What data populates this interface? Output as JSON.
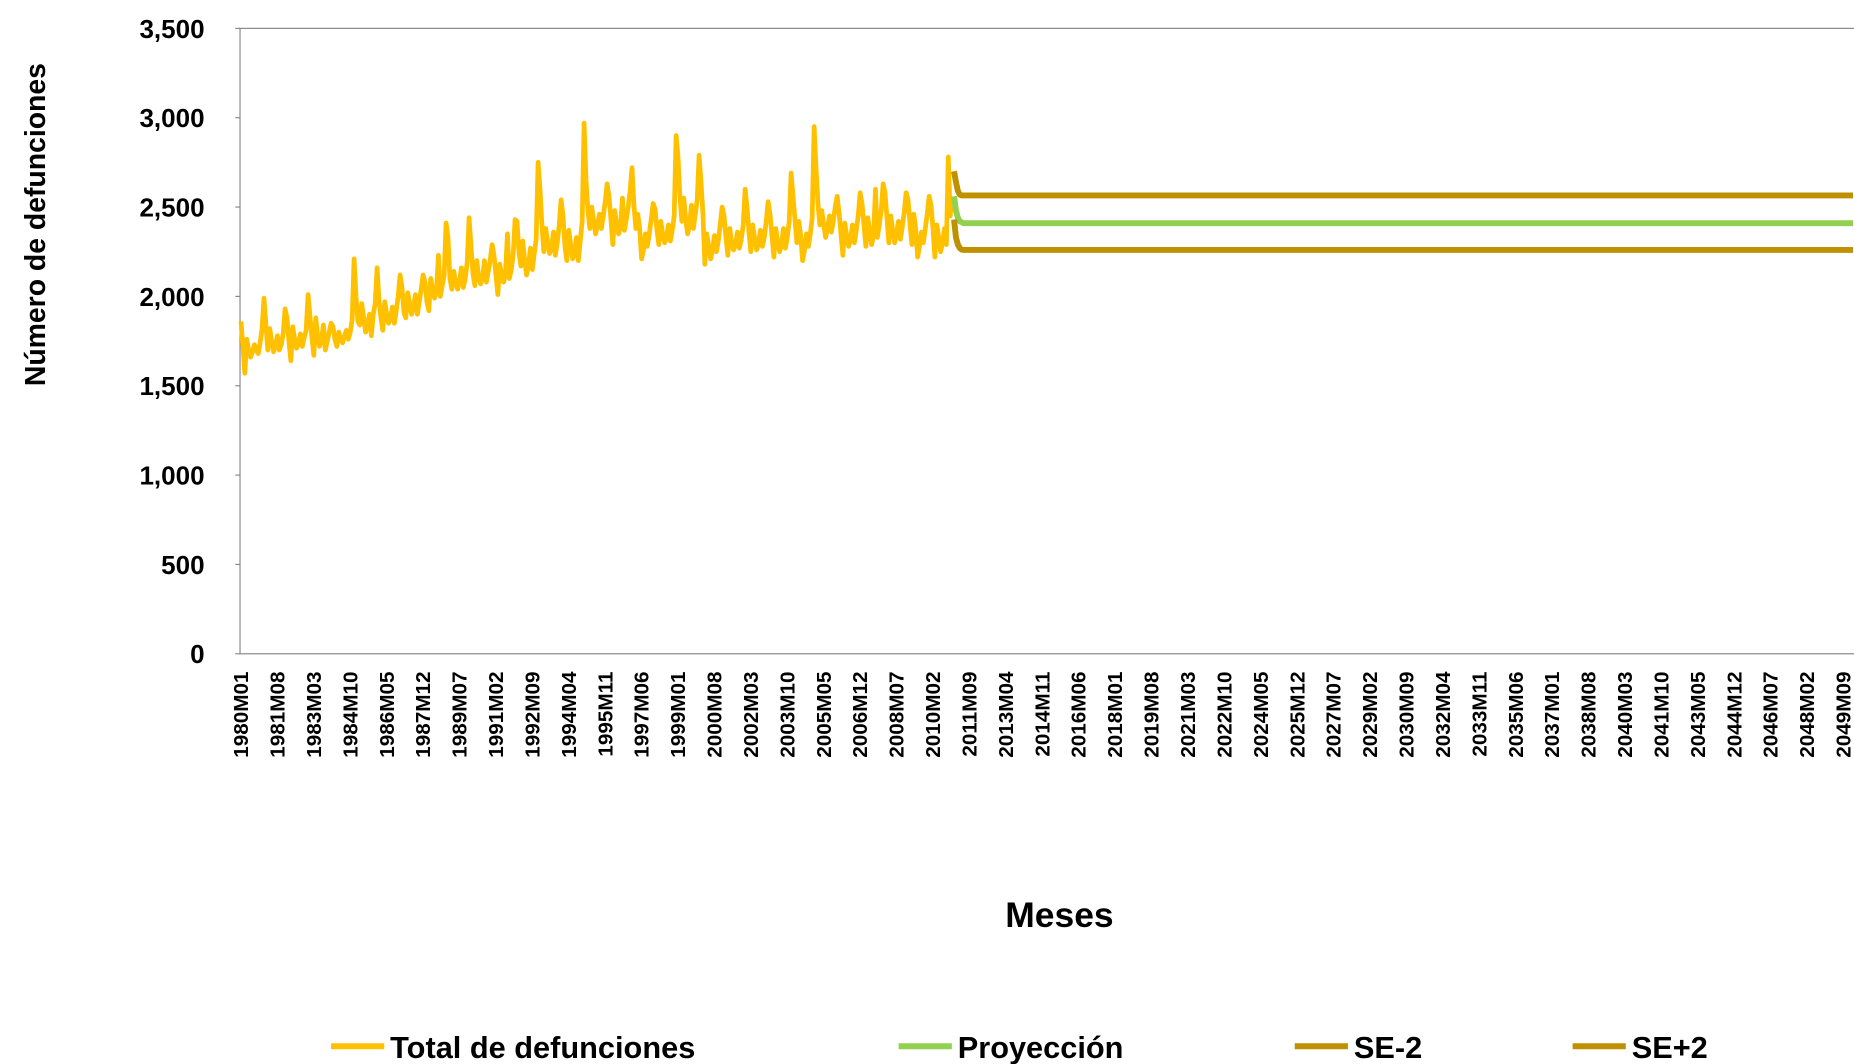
{
  "chart_data": {
    "type": "line",
    "y_label": "Número de defunciones",
    "x_label": "Meses",
    "xlim": [
      "1980M01",
      "2050M02"
    ],
    "xticks": [
      "1980M01",
      "1981M08",
      "1983M03",
      "1984M10",
      "1986M05",
      "1987M12",
      "1989M07",
      "1991M02",
      "1992M09",
      "1994M04",
      "1995M11",
      "1997M06",
      "1999M01",
      "2000M08",
      "2002M03",
      "2003M10",
      "2005M05",
      "2006M12",
      "2008M07",
      "2010M02",
      "2011M09",
      "2013M04",
      "2014M11",
      "2016M06",
      "2018M01",
      "2019M08",
      "2021M03",
      "2022M10",
      "2024M05",
      "2025M12",
      "2027M07",
      "2029M02",
      "2030M09",
      "2032M04",
      "2033M11",
      "2035M06",
      "2037M01",
      "2038M08",
      "2040M03",
      "2041M10",
      "2043M05",
      "2044M12",
      "2046M07",
      "2048M02",
      "2049M09"
    ],
    "ylim": [
      0,
      3500
    ],
    "yticks": [
      0,
      500,
      {
        "value": 1000,
        "label": "1,000"
      },
      {
        "value": 1500,
        "label": "1,500"
      },
      {
        "value": 2000,
        "label": "2,000"
      },
      {
        "value": 2500,
        "label": "2,500"
      },
      {
        "value": 3000,
        "label": "3,000"
      },
      {
        "value": 3500,
        "label": "3,500"
      }
    ],
    "series": [
      {
        "name": "Total de defunciones",
        "color": "#FFC000",
        "x": [
          "1980M01",
          "1980M02",
          "1980M03",
          "1980M04",
          "1980M05",
          "1980M06",
          "1980M07",
          "1980M08",
          "1980M09",
          "1980M10",
          "1980M11",
          "1980M12",
          "1981M01",
          "1981M02",
          "1981M03",
          "1981M04",
          "1981M05",
          "1981M06",
          "1981M07",
          "1981M08",
          "1981M09",
          "1981M10",
          "1981M11",
          "1981M12",
          "1982M01",
          "1982M02",
          "1982M03",
          "1982M04",
          "1982M05",
          "1982M06",
          "1982M07",
          "1982M08",
          "1982M09",
          "1982M10",
          "1982M11",
          "1982M12",
          "1983M01",
          "1983M02",
          "1983M03",
          "1983M04",
          "1983M05",
          "1983M06",
          "1983M07",
          "1983M08",
          "1983M09",
          "1983M10",
          "1983M11",
          "1983M12",
          "1984M01",
          "1984M02",
          "1984M03",
          "1984M04",
          "1984M05",
          "1984M06",
          "1984M07",
          "1984M08",
          "1984M09",
          "1984M10",
          "1984M11",
          "1984M12",
          "1985M01",
          "1985M02",
          "1985M03",
          "1985M04",
          "1985M05",
          "1985M06",
          "1985M07",
          "1985M08",
          "1985M09",
          "1985M10",
          "1985M11",
          "1985M12",
          "1986M01",
          "1986M02",
          "1986M03",
          "1986M04",
          "1986M05",
          "1986M06",
          "1986M07",
          "1986M08",
          "1986M09",
          "1986M10",
          "1986M11",
          "1986M12",
          "1987M01",
          "1987M02",
          "1987M03",
          "1987M04",
          "1987M05",
          "1987M06",
          "1987M07",
          "1987M08",
          "1987M09",
          "1987M10",
          "1987M11",
          "1987M12",
          "1988M01",
          "1988M02",
          "1988M03",
          "1988M04",
          "1988M05",
          "1988M06",
          "1988M07",
          "1988M08",
          "1988M09",
          "1988M10",
          "1988M11",
          "1988M12",
          "1989M01",
          "1989M02",
          "1989M03",
          "1989M04",
          "1989M05",
          "1989M06",
          "1989M07",
          "1989M08",
          "1989M09",
          "1989M10",
          "1989M11",
          "1989M12",
          "1990M01",
          "1990M02",
          "1990M03",
          "1990M04",
          "1990M05",
          "1990M06",
          "1990M07",
          "1990M08",
          "1990M09",
          "1990M10",
          "1990M11",
          "1990M12",
          "1991M01",
          "1991M02",
          "1991M03",
          "1991M04",
          "1991M05",
          "1991M06",
          "1991M07",
          "1991M08",
          "1991M09",
          "1991M10",
          "1991M11",
          "1991M12",
          "1992M01",
          "1992M02",
          "1992M03",
          "1992M04",
          "1992M05",
          "1992M06",
          "1992M07",
          "1992M08",
          "1992M09",
          "1992M10",
          "1992M11",
          "1992M12",
          "1993M01",
          "1993M02",
          "1993M03",
          "1993M04",
          "1993M05",
          "1993M06",
          "1993M07",
          "1993M08",
          "1993M09",
          "1993M10",
          "1993M11",
          "1993M12",
          "1994M01",
          "1994M02",
          "1994M03",
          "1994M04",
          "1994M05",
          "1994M06",
          "1994M07",
          "1994M08",
          "1994M09",
          "1994M10",
          "1994M11",
          "1994M12",
          "1995M01",
          "1995M02",
          "1995M03",
          "1995M04",
          "1995M05",
          "1995M06",
          "1995M07",
          "1995M08",
          "1995M09",
          "1995M10",
          "1995M11",
          "1995M12",
          "1996M01",
          "1996M02",
          "1996M03",
          "1996M04",
          "1996M05",
          "1996M06",
          "1996M07",
          "1996M08",
          "1996M09",
          "1996M10",
          "1996M11",
          "1996M12",
          "1997M01",
          "1997M02",
          "1997M03",
          "1997M04",
          "1997M05",
          "1997M06",
          "1997M07",
          "1997M08",
          "1997M09",
          "1997M10",
          "1997M11",
          "1997M12",
          "1998M01",
          "1998M02",
          "1998M03",
          "1998M04",
          "1998M05",
          "1998M06",
          "1998M07",
          "1998M08",
          "1998M09",
          "1998M10",
          "1998M11",
          "1998M12",
          "1999M01",
          "1999M02",
          "1999M03",
          "1999M04",
          "1999M05",
          "1999M06",
          "1999M07",
          "1999M08",
          "1999M09",
          "1999M10",
          "1999M11",
          "1999M12",
          "2000M01",
          "2000M02",
          "2000M03",
          "2000M04",
          "2000M05",
          "2000M06",
          "2000M07",
          "2000M08",
          "2000M09",
          "2000M10",
          "2000M11",
          "2000M12",
          "2001M01",
          "2001M02",
          "2001M03",
          "2001M04",
          "2001M05",
          "2001M06",
          "2001M07",
          "2001M08",
          "2001M09",
          "2001M10",
          "2001M11",
          "2001M12",
          "2002M01",
          "2002M02",
          "2002M03",
          "2002M04",
          "2002M05",
          "2002M06",
          "2002M07",
          "2002M08",
          "2002M09",
          "2002M10",
          "2002M11",
          "2002M12",
          "2003M01",
          "2003M02",
          "2003M03",
          "2003M04",
          "2003M05",
          "2003M06",
          "2003M07",
          "2003M08",
          "2003M09",
          "2003M10",
          "2003M11",
          "2003M12",
          "2004M01",
          "2004M02",
          "2004M03",
          "2004M04",
          "2004M05",
          "2004M06",
          "2004M07",
          "2004M08",
          "2004M09",
          "2004M10",
          "2004M11",
          "2004M12",
          "2005M01",
          "2005M02",
          "2005M03",
          "2005M04",
          "2005M05",
          "2005M06",
          "2005M07",
          "2005M08",
          "2005M09",
          "2005M10",
          "2005M11",
          "2005M12",
          "2006M01",
          "2006M02",
          "2006M03",
          "2006M04",
          "2006M05",
          "2006M06",
          "2006M07",
          "2006M08",
          "2006M09",
          "2006M10",
          "2006M11",
          "2006M12",
          "2007M01",
          "2007M02",
          "2007M03",
          "2007M04",
          "2007M05",
          "2007M06",
          "2007M07",
          "2007M08",
          "2007M09",
          "2007M10",
          "2007M11",
          "2007M12",
          "2008M01",
          "2008M02",
          "2008M03",
          "2008M04",
          "2008M05",
          "2008M06",
          "2008M07",
          "2008M08",
          "2008M09",
          "2008M10",
          "2008M11",
          "2008M12",
          "2009M01",
          "2009M02",
          "2009M03",
          "2009M04",
          "2009M05",
          "2009M06",
          "2009M07",
          "2009M08",
          "2009M09",
          "2009M10",
          "2009M11",
          "2009M12",
          "2010M01",
          "2010M02",
          "2010M03",
          "2010M04",
          "2010M05",
          "2010M06",
          "2010M07",
          "2010M08",
          "2010M09",
          "2010M10",
          "2010M11",
          "2010M12"
        ],
        "values": [
          1860,
          1720,
          1570,
          1760,
          1700,
          1660,
          1690,
          1730,
          1700,
          1680,
          1740,
          1820,
          1990,
          1840,
          1700,
          1820,
          1750,
          1690,
          1720,
          1780,
          1700,
          1730,
          1790,
          1930,
          1880,
          1750,
          1640,
          1830,
          1760,
          1710,
          1740,
          1790,
          1720,
          1770,
          1810,
          2010,
          1890,
          1770,
          1670,
          1880,
          1780,
          1720,
          1760,
          1840,
          1700,
          1750,
          1800,
          1850,
          1830,
          1760,
          1720,
          1800,
          1760,
          1740,
          1780,
          1810,
          1760,
          1800,
          1870,
          2210,
          2000,
          1860,
          1840,
          1960,
          1880,
          1800,
          1830,
          1900,
          1780,
          1900,
          1960,
          2160,
          1980,
          1880,
          1810,
          1970,
          1900,
          1850,
          1880,
          1940,
          1850,
          1920,
          2000,
          2120,
          2050,
          1910,
          1880,
          2020,
          1960,
          1900,
          1940,
          2010,
          1900,
          1970,
          2040,
          2120,
          2080,
          1970,
          1920,
          2100,
          2040,
          1990,
          2030,
          2230,
          2000,
          2060,
          2120,
          2410,
          2330,
          2100,
          2040,
          2140,
          2080,
          2040,
          2080,
          2160,
          2050,
          2100,
          2190,
          2440,
          2280,
          2130,
          2060,
          2200,
          2110,
          2070,
          2100,
          2200,
          2080,
          2140,
          2200,
          2290,
          2230,
          2120,
          2010,
          2180,
          2120,
          2080,
          2130,
          2350,
          2100,
          2150,
          2230,
          2430,
          2420,
          2250,
          2170,
          2310,
          2200,
          2120,
          2180,
          2270,
          2150,
          2240,
          2320,
          2750,
          2600,
          2400,
          2250,
          2380,
          2300,
          2240,
          2270,
          2360,
          2230,
          2300,
          2400,
          2540,
          2450,
          2280,
          2200,
          2370,
          2290,
          2210,
          2240,
          2330,
          2200,
          2310,
          2420,
          2970,
          2650,
          2480,
          2380,
          2500,
          2420,
          2350,
          2400,
          2460,
          2380,
          2450,
          2530,
          2630,
          2560,
          2430,
          2290,
          2480,
          2400,
          2350,
          2390,
          2550,
          2370,
          2430,
          2500,
          2590,
          2720,
          2510,
          2380,
          2460,
          2380,
          2210,
          2260,
          2350,
          2280,
          2350,
          2430,
          2520,
          2490,
          2370,
          2290,
          2420,
          2350,
          2300,
          2330,
          2400,
          2310,
          2370,
          2450,
          2900,
          2780,
          2560,
          2420,
          2550,
          2430,
          2350,
          2400,
          2510,
          2380,
          2460,
          2540,
          2790,
          2640,
          2460,
          2180,
          2350,
          2280,
          2210,
          2260,
          2340,
          2250,
          2310,
          2400,
          2500,
          2450,
          2330,
          2230,
          2380,
          2300,
          2260,
          2290,
          2360,
          2270,
          2320,
          2400,
          2600,
          2500,
          2360,
          2250,
          2400,
          2320,
          2260,
          2300,
          2370,
          2280,
          2330,
          2420,
          2530,
          2460,
          2340,
          2220,
          2380,
          2300,
          2250,
          2290,
          2380,
          2270,
          2330,
          2420,
          2690,
          2560,
          2430,
          2300,
          2420,
          2340,
          2200,
          2260,
          2350,
          2280,
          2350,
          2440,
          2950,
          2720,
          2520,
          2400,
          2480,
          2400,
          2330,
          2380,
          2450,
          2360,
          2420,
          2500,
          2560,
          2470,
          2350,
          2230,
          2410,
          2340,
          2280,
          2320,
          2400,
          2300,
          2370,
          2450,
          2580,
          2520,
          2400,
          2280,
          2440,
          2360,
          2290,
          2340,
          2600,
          2330,
          2400,
          2480,
          2630,
          2580,
          2440,
          2300,
          2450,
          2370,
          2300,
          2350,
          2420,
          2320,
          2390,
          2470,
          2580,
          2540,
          2410,
          2290,
          2460,
          2380,
          2220,
          2280,
          2360,
          2300,
          2380,
          2460,
          2560,
          2510,
          2380,
          2220,
          2400,
          2330,
          2250,
          2300,
          2380,
          2290,
          2780,
          2450,
          2560
        ]
      },
      {
        "name": "Proyección",
        "color": "#92D050",
        "x": [
          "2011M01",
          "2011M02",
          "2011M03",
          "2011M04",
          "2011M05",
          "2011M06",
          "2050M02"
        ],
        "values": [
          2560,
          2480,
          2440,
          2420,
          2415,
          2410,
          2410
        ]
      },
      {
        "name": "SE-2",
        "color": "#BF9000",
        "x": [
          "2011M01",
          "2011M02",
          "2011M03",
          "2011M04",
          "2011M05",
          "2011M06",
          "2050M02"
        ],
        "values": [
          2430,
          2330,
          2290,
          2270,
          2262,
          2260,
          2260
        ]
      },
      {
        "name": "SE+2",
        "color": "#BF9000",
        "x": [
          "2011M01",
          "2011M02",
          "2011M03",
          "2011M04",
          "2011M05",
          "2011M06",
          "2050M02"
        ],
        "values": [
          2700,
          2640,
          2590,
          2570,
          2565,
          2565,
          2565
        ]
      }
    ]
  }
}
